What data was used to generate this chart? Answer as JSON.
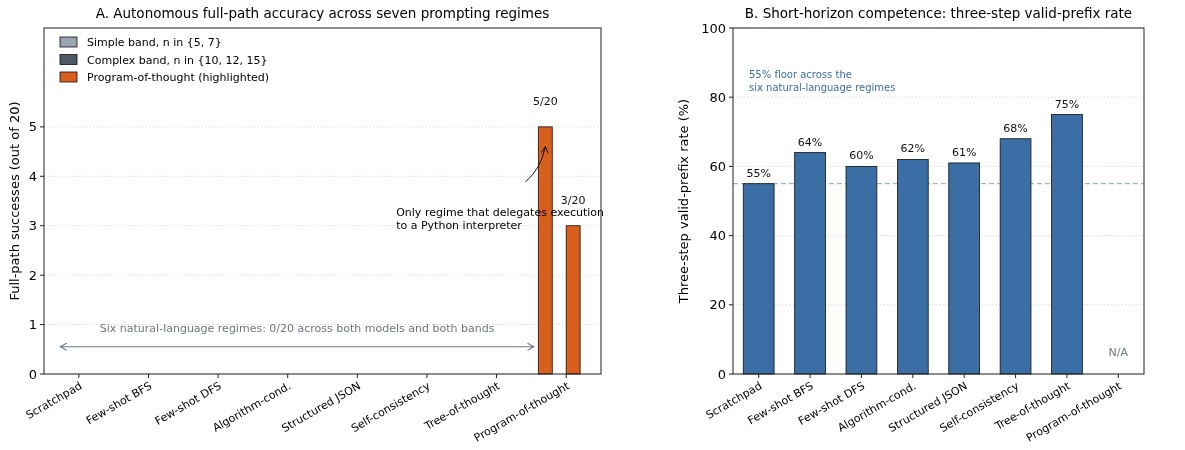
{
  "chart_data": [
    {
      "type": "bar",
      "title": "A. Autonomous full-path accuracy across seven prompting regimes",
      "ylabel": "Full-path successes (out of 20)",
      "categories": [
        "Scratchpad",
        "Few-shot BFS",
        "Few-shot DFS",
        "Algorithm-cond.",
        "Structured JSON",
        "Self-consistency",
        "Tree-of-thought",
        "Program-of-thought"
      ],
      "series": [
        {
          "name": "Simple band, n in {5, 7}",
          "color": "#9aa5b1",
          "values": [
            0,
            0,
            0,
            0,
            0,
            0,
            0,
            null
          ]
        },
        {
          "name": "Complex band, n in {10, 12, 15}",
          "color": "#4d5966",
          "values": [
            0,
            0,
            0,
            0,
            0,
            0,
            0,
            null
          ]
        },
        {
          "name": "Program-of-thought (highlighted)",
          "color": "#d95f1e",
          "values": [
            null,
            null,
            null,
            null,
            null,
            null,
            null,
            5
          ],
          "value_labels": [
            null,
            null,
            null,
            null,
            null,
            null,
            null,
            "5/20"
          ]
        },
        {
          "color": "#d95f1e",
          "values": [
            null,
            null,
            null,
            null,
            null,
            null,
            null,
            3
          ],
          "value_labels": [
            null,
            null,
            null,
            null,
            null,
            null,
            null,
            "3/20"
          ]
        }
      ],
      "ylim": [
        0,
        7
      ],
      "yticks": [
        0,
        1,
        2,
        3,
        4,
        5
      ],
      "grid": "y",
      "legend": "top left",
      "annotations": [
        "Only regime that delegates execution\nto a Python interpreter",
        "Six natural-language regimes: 0/20 across both models and both bands"
      ]
    },
    {
      "type": "bar",
      "title": "B. Short-horizon competence: three-step valid-prefix rate",
      "ylabel": "Three-step valid-prefix rate (%)",
      "categories": [
        "Scratchpad",
        "Few-shot BFS",
        "Few-shot DFS",
        "Algorithm-cond.",
        "Structured JSON",
        "Self-consistency",
        "Tree-of-thought",
        "Program-of-thought"
      ],
      "series": [
        {
          "color": "#3a6ea5",
          "values": [
            55,
            64,
            60,
            62,
            61,
            68,
            75,
            null
          ],
          "value_labels": [
            "55%",
            "64%",
            "60%",
            "62%",
            "61%",
            "68%",
            "75%",
            "N/A"
          ]
        }
      ],
      "ylim": [
        0,
        100
      ],
      "yticks": [
        0,
        20,
        40,
        60,
        80,
        100
      ],
      "grid": "y",
      "ref_lines": [
        {
          "axis": "y",
          "value": 55,
          "color": "#7fa6d6",
          "line_style": "dashed"
        }
      ],
      "annotations": [
        "55% floor across the\nsix natural-language regimes"
      ]
    }
  ]
}
